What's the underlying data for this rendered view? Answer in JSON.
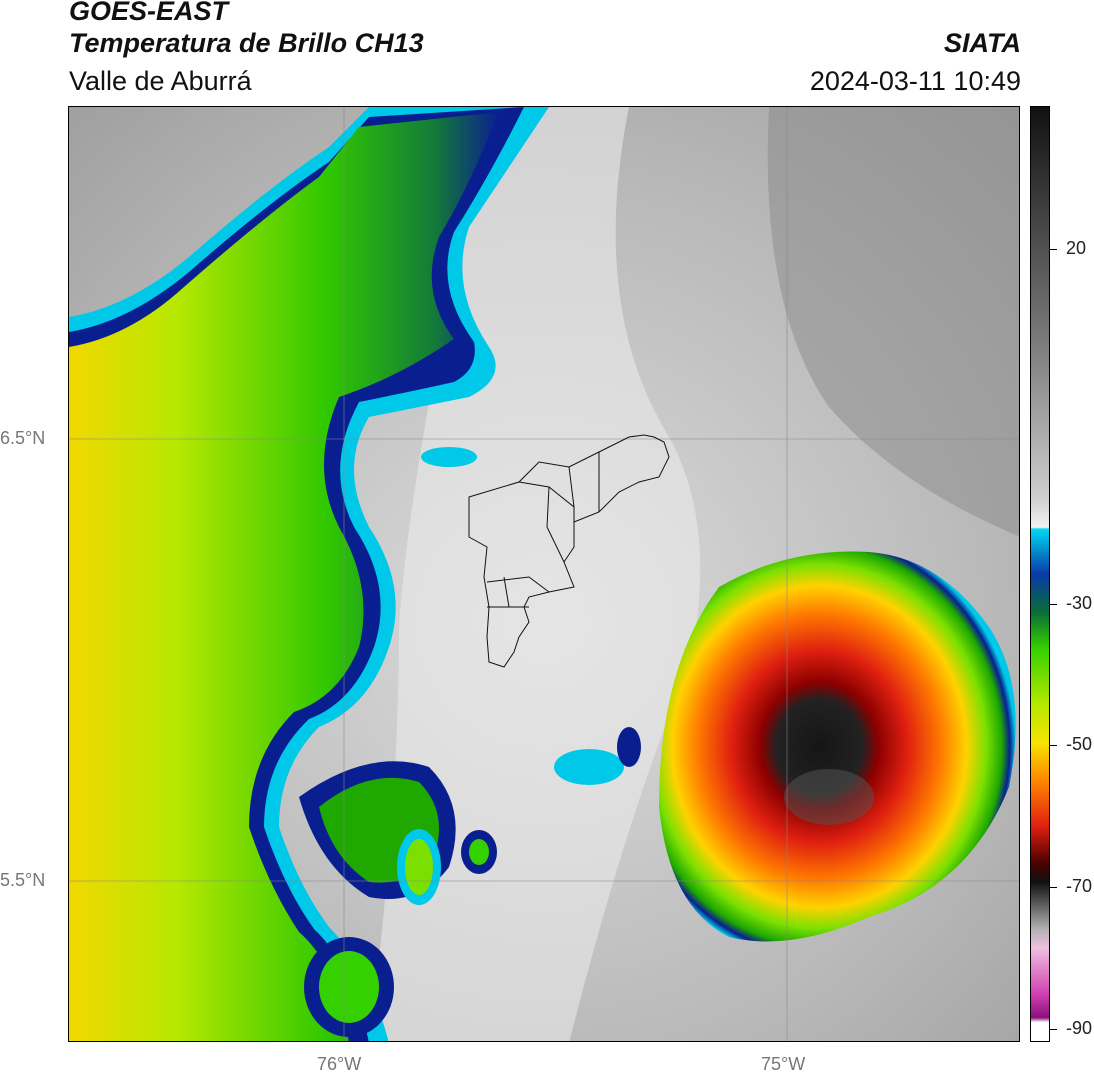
{
  "header": {
    "satellite": "GOES-EAST",
    "product": "Temperatura de Brillo CH13",
    "region": "Valle de Aburrá",
    "org": "SIATA",
    "datetime": "2024-03-11 10:49"
  },
  "axes": {
    "lat_labels": [
      "6.5°N",
      "5.5°N"
    ],
    "lon_labels": [
      "76°W",
      "75°W"
    ]
  },
  "colorbar": {
    "ticks": [
      "20",
      "-30",
      "-50",
      "-70",
      "-90"
    ],
    "range": [
      -92,
      32
    ]
  },
  "colors": {
    "cold_core": "#111111",
    "red": "#e02010",
    "orange": "#ff8a00",
    "yellow": "#f6e400",
    "green": "#35d000",
    "dark_blue": "#0a1f8f",
    "cyan": "#00c8e8"
  }
}
